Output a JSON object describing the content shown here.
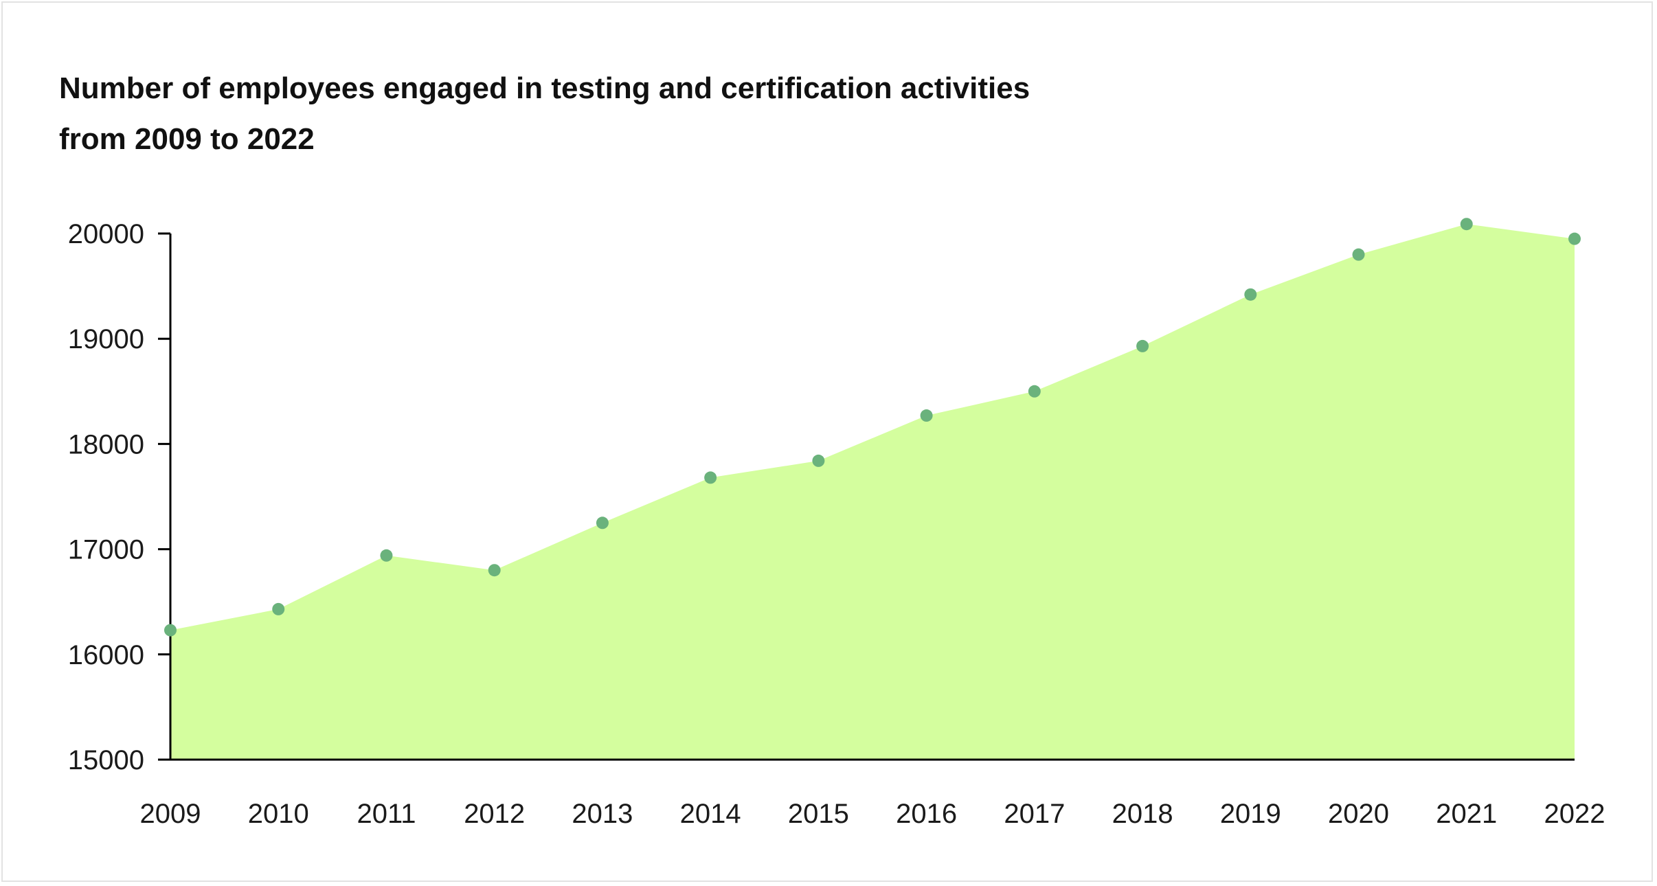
{
  "chart_data": {
    "type": "area",
    "title": "Number of employees engaged in testing and certification activities\nfrom 2009 to 2022",
    "xlabel": "",
    "ylabel": "",
    "categories": [
      "2009",
      "2010",
      "2011",
      "2012",
      "2013",
      "2014",
      "2015",
      "2016",
      "2017",
      "2018",
      "2019",
      "2020",
      "2021",
      "2022"
    ],
    "values": [
      16230,
      16430,
      16940,
      16800,
      17250,
      17680,
      17840,
      18270,
      18500,
      18930,
      19420,
      19800,
      20090,
      19950
    ],
    "y_ticks": [
      "15000",
      "16000",
      "17000",
      "18000",
      "19000",
      "20000"
    ],
    "ylim": [
      15000,
      20000
    ],
    "grid": false,
    "legend": "none",
    "colors": {
      "area_fill": "#d4fe9e",
      "marker": "#6ab27c",
      "axis": "#000000"
    }
  }
}
